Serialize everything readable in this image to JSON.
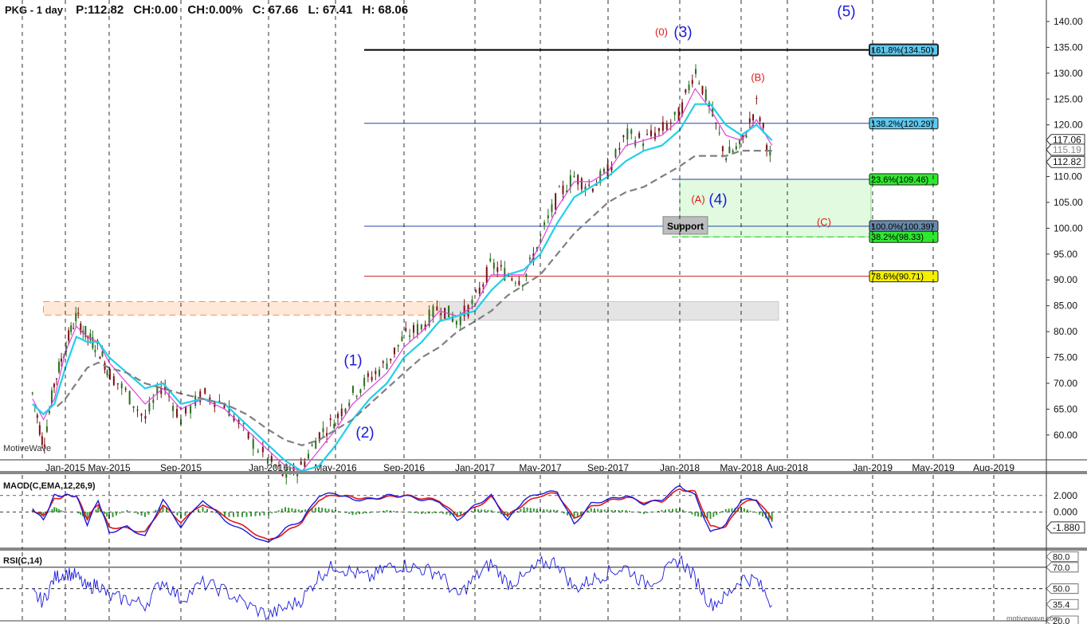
{
  "header": {
    "symbol": "PKG - 1 day",
    "price": "P:112.82",
    "change": "CH:0.00",
    "change_pct": "CH:0.00%",
    "close": "C: 67.66",
    "low": "L: 67.41",
    "high": "H: 68.06"
  },
  "watermark": "MotiveWave",
  "credit": "motivewave.com",
  "colors": {
    "candle_up": "#2a6e1e",
    "candle_down": "#7a1212",
    "ma_fast": "#e040e0",
    "ma_mid": "#20d0e8",
    "ma_slow": "#808080",
    "wave_blue": "#1a1adc",
    "wave_red": "#e01818",
    "macd_line": "#1a1adc",
    "signal_line": "#e01818",
    "histogram": "#3a9a3a",
    "rsi_line": "#1a1adc"
  },
  "chart_data": [
    {
      "type": "candlestick",
      "title": "PKG - 1 day",
      "x_ticks": [
        "Jan-2015",
        "May-2015",
        "Sep-2015",
        "Jan-2016",
        "May-2016",
        "Sep-2016",
        "Jan-2017",
        "May-2017",
        "Sep-2017",
        "Jan-2018",
        "May-2018",
        "Aug-2018",
        "Jan-2019",
        "May-2019",
        "Aug-2019"
      ],
      "y_ticks": [
        "60.00",
        "65.00",
        "70.00",
        "75.00",
        "80.00",
        "85.00",
        "90.00",
        "95.00",
        "100.00",
        "105.00",
        "110.00",
        "115.00",
        "120.00",
        "125.00",
        "130.00",
        "135.00",
        "140.00"
      ],
      "ylim": [
        55.5,
        142
      ],
      "grid": "vertical dashed",
      "price_path": {
        "x": [
          "Oct-2014",
          "Nov-2014",
          "Dec-2014",
          "Jan-2015",
          "Feb-2015",
          "Mar-2015",
          "Apr-2015",
          "May-2015",
          "Jun-2015",
          "Jul-2015",
          "Aug-2015",
          "Sep-2015",
          "Oct-2015",
          "Nov-2015",
          "Dec-2015",
          "Jan-2016",
          "Feb-2016",
          "Mar-2016",
          "Apr-2016",
          "May-2016",
          "Jun-2016",
          "Jul-2016",
          "Aug-2016",
          "Sep-2016",
          "Oct-2016",
          "Nov-2016",
          "Dec-2016",
          "Jan-2017",
          "Feb-2017",
          "Mar-2017",
          "Apr-2017",
          "May-2017",
          "Jun-2017",
          "Jul-2017",
          "Aug-2017",
          "Sep-2017",
          "Oct-2017",
          "Nov-2017",
          "Dec-2017",
          "Jan-2018",
          "Feb-2018",
          "Mar-2018",
          "Apr-2018",
          "May-2018",
          "Jun-2018",
          "Jul-2018"
        ],
        "close": [
          68,
          58,
          70,
          77,
          83,
          79,
          77,
          72,
          68,
          63,
          70,
          63,
          68,
          66,
          60,
          55,
          52,
          54,
          60,
          63,
          68,
          71,
          74,
          79,
          81,
          85,
          82,
          86,
          93,
          91,
          90,
          98,
          106,
          110,
          108,
          111,
          118,
          117,
          119,
          122,
          131,
          123,
          114,
          116,
          124,
          112.82
        ]
      },
      "moving_averages": [
        {
          "kind": "fast",
          "values": [
            67,
            63,
            67,
            76,
            81,
            79,
            78,
            74,
            70,
            66,
            69,
            65,
            67,
            65,
            61,
            57,
            54,
            53,
            57,
            61,
            66,
            69,
            72,
            77,
            80,
            84,
            83,
            85,
            91,
            91,
            91,
            97,
            104,
            109,
            109,
            111,
            116,
            117,
            118,
            121,
            127,
            123,
            118,
            117,
            121,
            116
          ]
        },
        {
          "kind": "mid",
          "values": [
            66,
            64,
            66,
            73,
            79,
            78,
            78,
            75,
            72,
            69,
            70,
            66,
            67,
            66,
            62,
            58,
            55,
            53,
            54,
            58,
            63,
            67,
            70,
            75,
            78,
            82,
            83,
            84,
            88,
            91,
            92,
            95,
            101,
            106,
            108,
            110,
            113,
            115,
            116,
            119,
            124,
            124,
            120,
            118,
            120,
            117
          ]
        },
        {
          "kind": "slow",
          "values": [
            null,
            null,
            65,
            67,
            70,
            73,
            74,
            73,
            72,
            70,
            69,
            68,
            67,
            66,
            64,
            61,
            59,
            58,
            59,
            61,
            63,
            66,
            69,
            72,
            75,
            77,
            80,
            82,
            84,
            87,
            89,
            91,
            95,
            99,
            102,
            105,
            107,
            108,
            110,
            112,
            114,
            114,
            114,
            115,
            115,
            115
          ]
        }
      ],
      "levels": [
        {
          "label": "161.8%(134.50)",
          "value": 134.5
        },
        {
          "label": "138.2%(120.29)",
          "value": 120.29
        },
        {
          "label": "23.6%(109.46)",
          "value": 109.46
        },
        {
          "label": "100.0%(100.39)",
          "value": 100.39
        },
        {
          "label": "38.2%(98.33)",
          "value": 98.33
        },
        {
          "label": "78.6%(90.71)",
          "value": 90.71
        }
      ],
      "price_labels": [
        "117.06",
        "115.19",
        "112.82"
      ],
      "annotations": [
        "(1)",
        "(2)",
        "(3)",
        "(4)",
        "(5)",
        "(0)",
        "(A)",
        "(B)",
        "(C)",
        "Support"
      ],
      "zones": [
        {
          "kind": "resistance",
          "from": "Nov-2014",
          "to": "Nov-2016",
          "low": 83.2,
          "high": 85.8
        },
        {
          "kind": "support-gray",
          "from": "Nov-2016",
          "to": "Aug-2018",
          "low": 82.2,
          "high": 85.8
        },
        {
          "kind": "target-green",
          "from": "Jan-2018",
          "to": "Dec-2018",
          "low": 98.33,
          "high": 109.46
        }
      ]
    },
    {
      "type": "line",
      "title": "MACD(C,EMA,12,26,9)",
      "y_ticks": [
        "2.000",
        "0.000"
      ],
      "value_label": "-1.880",
      "ylim": [
        -4.5,
        4.5
      ],
      "series": [
        {
          "kind": "macd",
          "values": [
            0.5,
            -1,
            2,
            2,
            2,
            -1.5,
            1.5,
            -2.5,
            -1.8,
            -3,
            1.5,
            -1.8,
            1.5,
            -1,
            -2.5,
            -3.8,
            -2,
            -1,
            2,
            2.3,
            1.5,
            1.5,
            2,
            2,
            1.5,
            1.3,
            -1,
            0.8,
            2,
            -1,
            1.5,
            2.3,
            2.5,
            -1.5,
            1,
            1.5,
            2,
            1,
            1.5,
            3.2,
            2,
            -2.5,
            -1.5,
            1.5,
            1.5,
            -1.88
          ]
        },
        {
          "kind": "signal",
          "values": [
            0.3,
            -0.5,
            1.5,
            2,
            2,
            -0.8,
            1,
            -1.8,
            -2,
            -2.5,
            0.8,
            -1.2,
            1,
            -0.5,
            -2,
            -3.5,
            -2.5,
            -1.2,
            1.5,
            2.1,
            1.8,
            1.6,
            1.8,
            2,
            1.7,
            1.4,
            -0.5,
            0.5,
            1.8,
            -0.5,
            1,
            2,
            2.3,
            -0.8,
            0.6,
            1.3,
            1.8,
            1.2,
            1.3,
            2.8,
            2.4,
            -1.8,
            -1.8,
            1,
            1.6,
            -0.9
          ]
        }
      ]
    },
    {
      "type": "line",
      "title": "RSI(C,14)",
      "y_ticks": [
        "80.0",
        "70.0",
        "50.0",
        "35.4",
        "20.0"
      ],
      "ylim": [
        17,
        84
      ],
      "series": [
        {
          "kind": "rsi",
          "values": [
            45,
            38,
            60,
            65,
            62,
            50,
            55,
            42,
            40,
            35,
            58,
            40,
            55,
            48,
            35,
            25,
            32,
            40,
            62,
            72,
            65,
            60,
            70,
            72,
            68,
            65,
            42,
            60,
            74,
            55,
            60,
            73,
            75,
            50,
            58,
            65,
            70,
            55,
            62,
            78,
            60,
            35,
            42,
            60,
            58,
            35.4
          ]
        }
      ]
    }
  ]
}
